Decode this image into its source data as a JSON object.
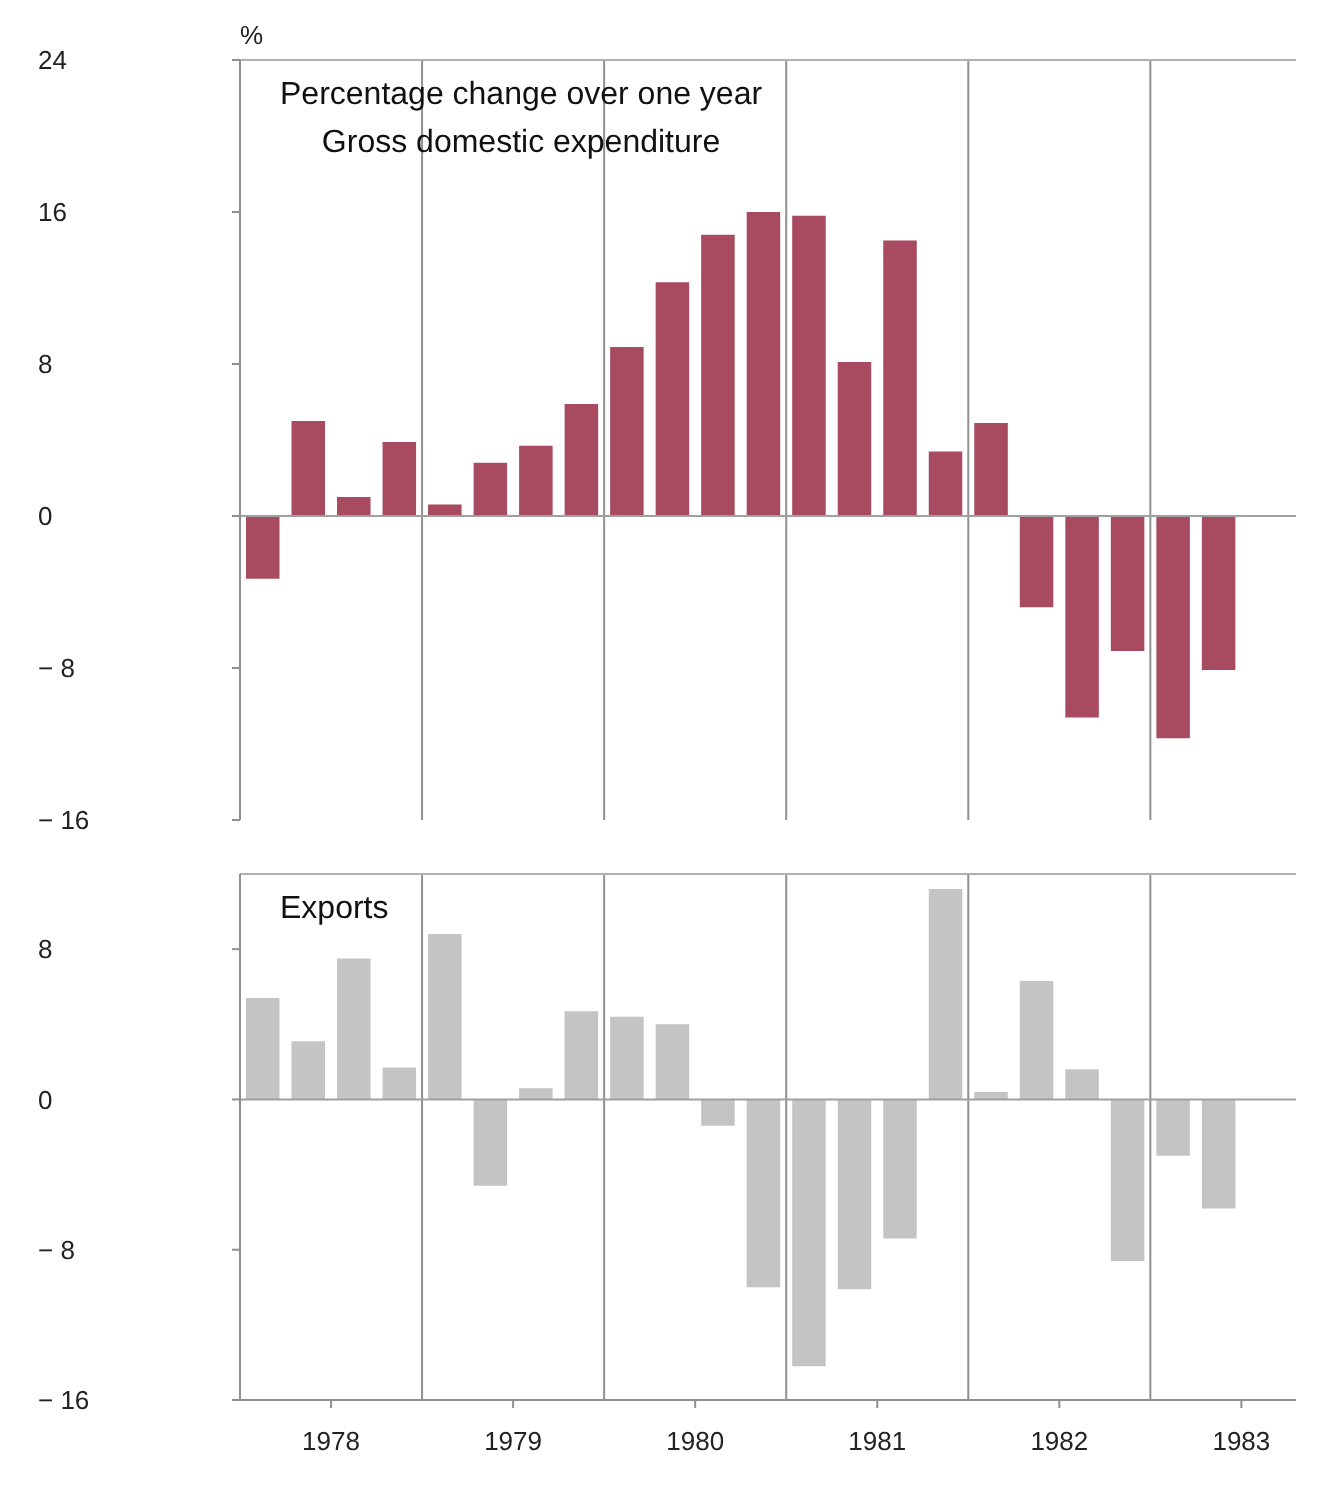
{
  "chart_data": [
    {
      "type": "bar",
      "title": "Percentage change over one year",
      "subtitle": "Gross domestic expenditure",
      "ylabel": "%",
      "x": [
        1977.625,
        1977.875,
        1978.125,
        1978.375,
        1978.625,
        1978.875,
        1979.125,
        1979.375,
        1979.625,
        1979.875,
        1980.125,
        1980.375,
        1980.625,
        1980.875,
        1981.125,
        1981.375,
        1981.625,
        1981.875,
        1982.125,
        1982.375,
        1982.625,
        1982.875
      ],
      "values": [
        -3.3,
        5.0,
        1.0,
        3.9,
        0.6,
        2.8,
        3.7,
        5.9,
        8.9,
        12.3,
        14.8,
        16.0,
        15.8,
        8.1,
        14.5,
        3.4,
        4.9,
        -4.8,
        -10.6,
        -7.1,
        -11.7,
        -8.1
      ],
      "color": "#a84a60",
      "xlim": [
        1977.5,
        1983.3
      ],
      "ylim": [
        -16,
        24
      ],
      "yticks": [
        24,
        16,
        8,
        0,
        -8,
        -16
      ],
      "tick_labels": "y",
      "ref_lines": [
        {
          "axis": "x",
          "value": 1978.5,
          "color": "#909090"
        },
        {
          "axis": "x",
          "value": 1979.5,
          "color": "#909090"
        },
        {
          "axis": "x",
          "value": 1980.5,
          "color": "#909090"
        },
        {
          "axis": "x",
          "value": 1981.5,
          "color": "#909090"
        },
        {
          "axis": "x",
          "value": 1982.5,
          "color": "#909090"
        },
        {
          "axis": "y",
          "value": 0,
          "color": "#a0a0a0"
        }
      ]
    },
    {
      "type": "bar",
      "title": "Exports",
      "x": [
        1977.625,
        1977.875,
        1978.125,
        1978.375,
        1978.625,
        1978.875,
        1979.125,
        1979.375,
        1979.625,
        1979.875,
        1980.125,
        1980.375,
        1980.625,
        1980.875,
        1981.125,
        1981.375,
        1981.625,
        1981.875,
        1982.125,
        1982.375,
        1982.625,
        1982.875
      ],
      "values": [
        5.4,
        3.1,
        7.5,
        1.7,
        8.8,
        -4.6,
        0.6,
        4.7,
        4.4,
        4.0,
        -1.4,
        -10.0,
        -14.2,
        -10.1,
        -7.4,
        11.2,
        0.4,
        6.3,
        1.6,
        -8.6,
        -3.0,
        -5.8
      ],
      "color": "#c4c4c4",
      "xlim": [
        1977.5,
        1983.3
      ],
      "ylim": [
        -16,
        12
      ],
      "yticks": [
        8,
        0,
        -8,
        -16
      ],
      "xticks": [
        1978,
        1979,
        1980,
        1981,
        1982,
        1983
      ],
      "ref_lines": [
        {
          "axis": "x",
          "value": 1978.5,
          "color": "#909090"
        },
        {
          "axis": "x",
          "value": 1979.5,
          "color": "#909090"
        },
        {
          "axis": "x",
          "value": 1980.5,
          "color": "#909090"
        },
        {
          "axis": "x",
          "value": 1981.5,
          "color": "#909090"
        },
        {
          "axis": "x",
          "value": 1982.5,
          "color": "#909090"
        },
        {
          "axis": "y",
          "value": 0,
          "color": "#a0a0a0"
        }
      ]
    }
  ]
}
